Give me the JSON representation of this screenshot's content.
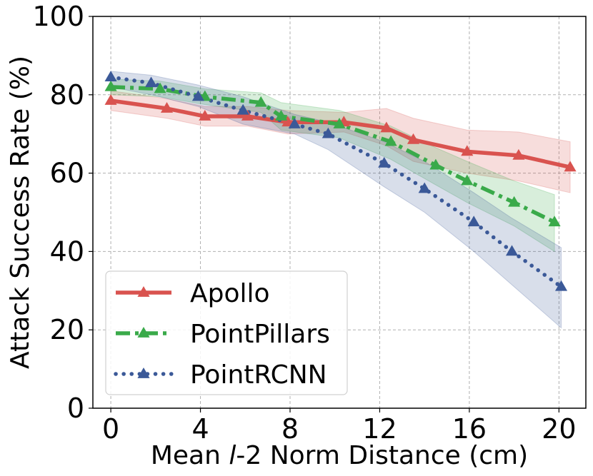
{
  "chart_data": {
    "type": "line",
    "xlabel_prefix": "Mean ",
    "xlabel_italic": "l",
    "xlabel_suffix": "-2 Norm Distance (cm)",
    "ylabel": "Attack Success Rate (%)",
    "xlim": [
      -0.8,
      21.2
    ],
    "ylim": [
      0,
      100
    ],
    "xticks": [
      0,
      4,
      8,
      12,
      16,
      20
    ],
    "yticks": [
      0,
      20,
      40,
      60,
      80,
      100
    ],
    "grid": true,
    "legend_position": "lower-left",
    "series": [
      {
        "name": "Apollo",
        "color": "#d9534f",
        "linestyle": "solid",
        "marker": "triangle",
        "x": [
          0,
          2.5,
          4.2,
          6.1,
          7.9,
          10.4,
          12.3,
          13.5,
          15.9,
          18.2,
          20.5
        ],
        "y": [
          78.5,
          76.5,
          74.5,
          74.5,
          73,
          73,
          71.5,
          68.5,
          65.5,
          64.5,
          61.5
        ],
        "upper": [
          81,
          79,
          77,
          77,
          76,
          75.5,
          76.5,
          74,
          71,
          70.5,
          68
        ],
        "lower": [
          76,
          74,
          72,
          72,
          70,
          70.5,
          67,
          63,
          60,
          58,
          55
        ]
      },
      {
        "name": "PointPillars",
        "color": "#3aaa4a",
        "linestyle": "dashdot",
        "marker": "triangle",
        "x": [
          0,
          2.2,
          4.2,
          6.7,
          7.6,
          10.2,
          12.5,
          14.5,
          15.9,
          18.0,
          19.8
        ],
        "y": [
          82,
          81.5,
          79.5,
          78,
          74.5,
          72.5,
          68,
          62,
          58,
          52.5,
          47.5
        ],
        "upper": [
          84,
          83.5,
          81.5,
          80.5,
          78,
          76,
          72,
          66.5,
          63,
          58,
          54.5
        ],
        "lower": [
          80,
          79.5,
          77.5,
          75.5,
          71,
          69,
          63.5,
          57,
          52.5,
          46.5,
          40
        ]
      },
      {
        "name": "PointRCNN",
        "color": "#3b5998",
        "linestyle": "dotted",
        "marker": "triangle",
        "x": [
          0,
          1.8,
          3.9,
          5.9,
          8.2,
          9.7,
          12.2,
          14.0,
          16.2,
          17.9,
          20.1
        ],
        "y": [
          84.5,
          83,
          79.5,
          76,
          72.5,
          70,
          62.5,
          56,
          47.5,
          40,
          31
        ],
        "upper": [
          86,
          85,
          82.5,
          79.5,
          75,
          73,
          68,
          63,
          55,
          48.5,
          41
        ],
        "lower": [
          82,
          80,
          77,
          72.5,
          70,
          66,
          56.5,
          50,
          40,
          31.5,
          20.5
        ]
      }
    ]
  }
}
